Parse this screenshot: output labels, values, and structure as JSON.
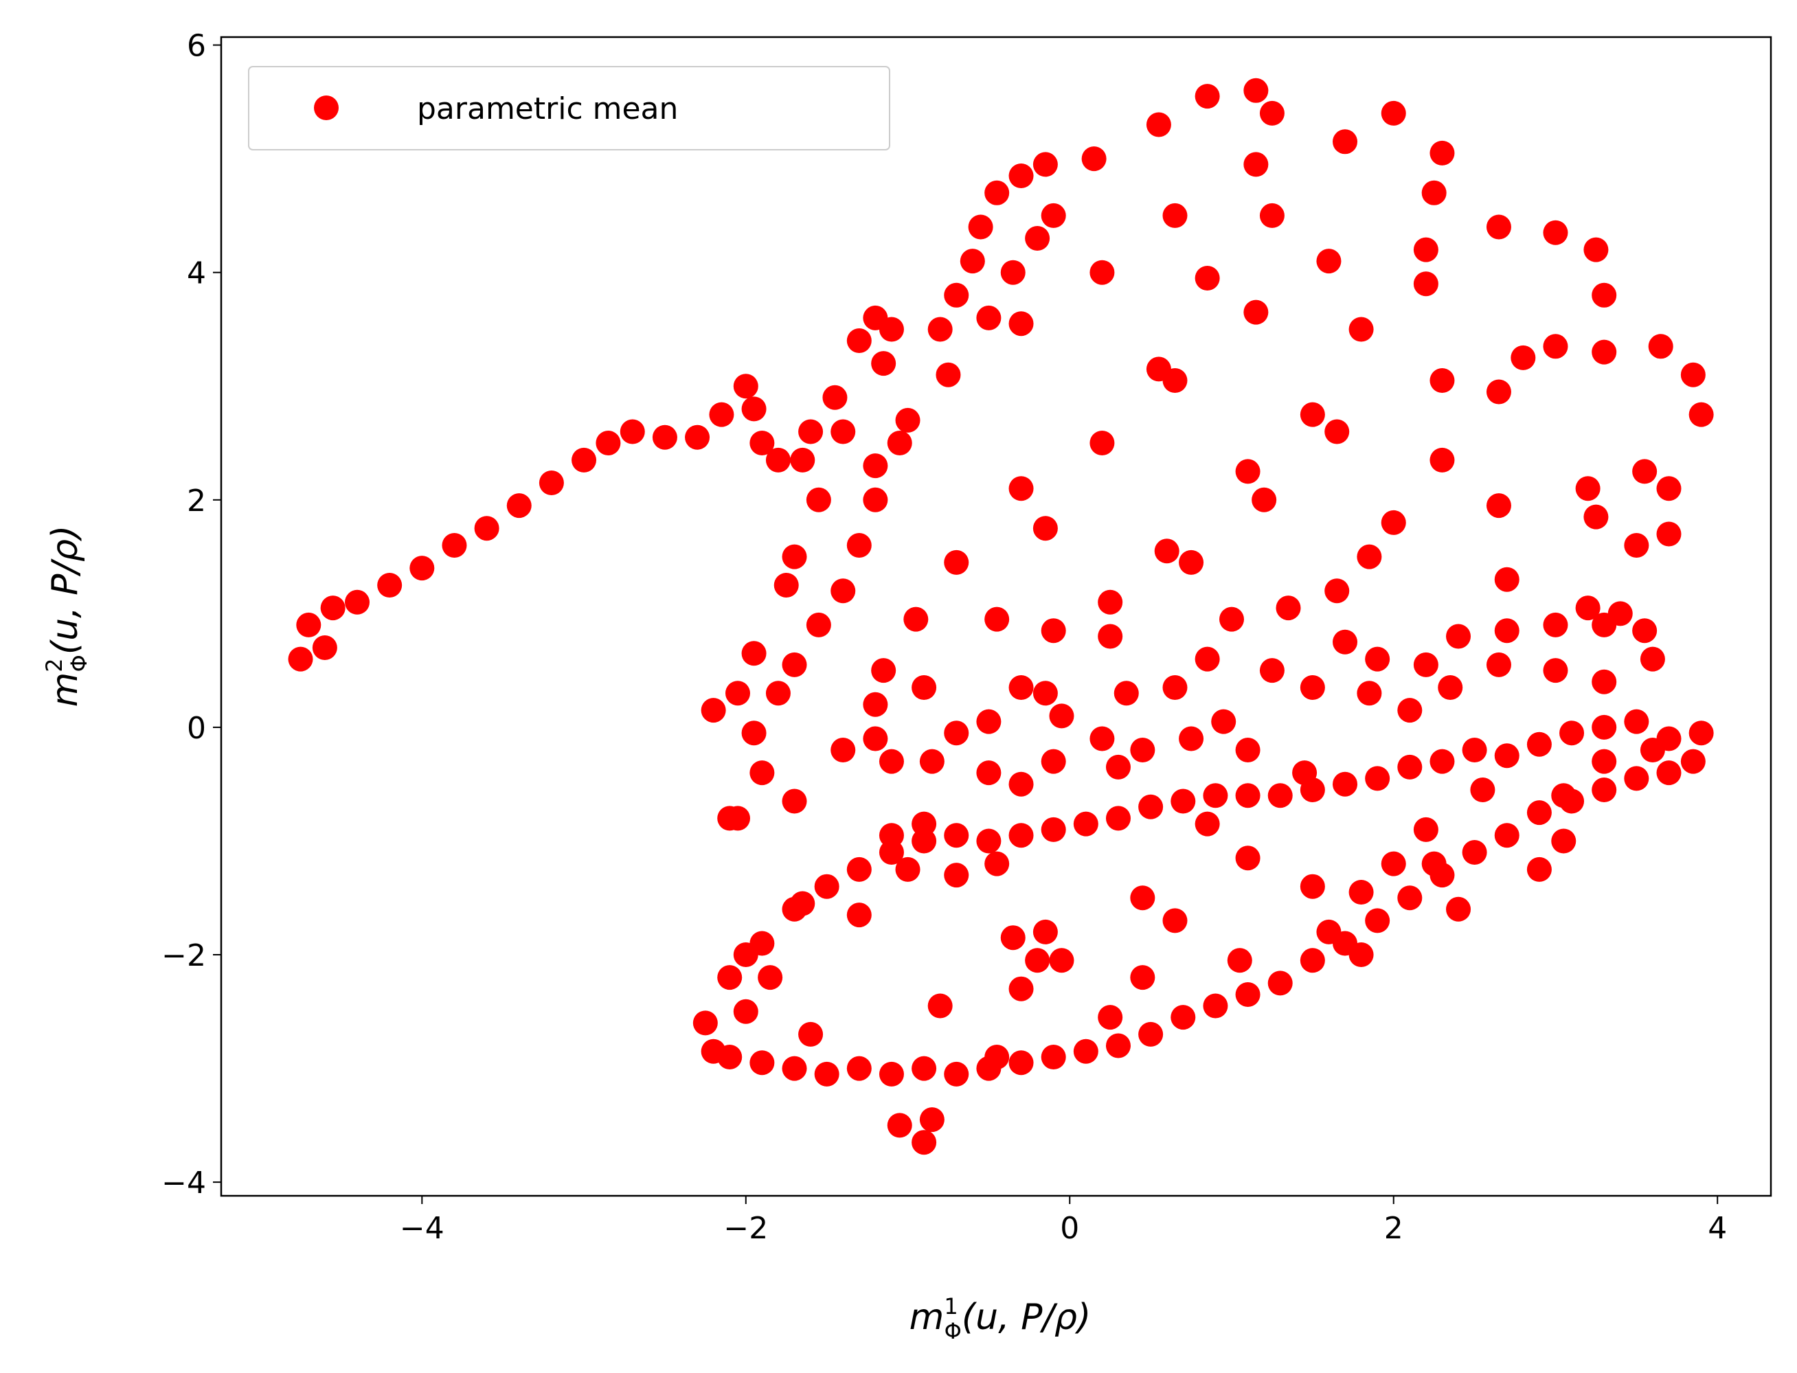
{
  "chart_data": {
    "type": "scatter",
    "xlabel": {
      "symbol": "m",
      "superscript": "1",
      "subscript": "Φ",
      "argument": "(u, P/ρ)"
    },
    "ylabel": {
      "symbol": "m",
      "superscript": "2",
      "subscript": "Φ",
      "argument": "(u, P/ρ)"
    },
    "xlim": [
      -5.24,
      4.33
    ],
    "ylim": [
      -4.12,
      6.07
    ],
    "xticks": [
      {
        "value": -4,
        "label": "−4"
      },
      {
        "value": -2,
        "label": "−2"
      },
      0,
      2,
      4
    ],
    "yticks": [
      {
        "value": -4,
        "label": "−4"
      },
      {
        "value": -2,
        "label": "−2"
      },
      0,
      2,
      4,
      6
    ],
    "grid": false,
    "legend": "upper left",
    "series": [
      {
        "name": "parametric mean",
        "color": "#ff0000",
        "x": [
          -4.75,
          -4.7,
          -4.6,
          -4.55,
          -4.4,
          -4.2,
          -4.0,
          -3.8,
          -3.6,
          -3.4,
          -3.2,
          -3.0,
          -2.85,
          -2.7,
          -2.5,
          -2.3,
          -2.15,
          -2.0,
          -1.95,
          -1.9,
          -1.8,
          -1.65,
          -1.6,
          -1.55,
          -1.7,
          -1.75,
          -1.55,
          -1.4,
          -1.3,
          -1.2,
          -1.2,
          -1.05,
          -1.45,
          -1.3,
          -1.2,
          -1.1,
          -1.15,
          -1.4,
          -1.0,
          -0.8,
          -0.75,
          -0.7,
          -0.6,
          -0.55,
          -0.5,
          -0.45,
          -0.35,
          -0.3,
          -0.3,
          -0.2,
          -0.15,
          -0.1,
          0.15,
          0.2,
          0.55,
          0.65,
          0.85,
          0.85,
          1.15,
          1.15,
          1.25,
          1.25,
          1.15,
          1.7,
          1.6,
          2.0,
          2.3,
          2.2,
          2.2,
          2.25,
          2.65,
          3.0,
          3.25,
          3.3,
          1.8,
          2.3,
          2.65,
          2.8,
          3.0,
          3.3,
          3.65,
          3.85,
          3.9,
          0.55,
          0.65,
          0.2,
          1.1,
          1.2,
          1.5,
          1.65,
          2.3,
          2.65,
          3.2,
          3.25,
          3.55,
          3.7,
          3.7,
          3.5,
          2.0,
          1.85,
          2.7,
          -0.3,
          -0.15,
          0.6,
          0.75,
          -0.7,
          1.0,
          0.25,
          1.35,
          1.65,
          -0.95,
          -0.45,
          -0.1,
          0.25,
          0.85,
          1.7,
          1.9,
          2.2,
          2.4,
          2.7,
          3.0,
          3.2,
          3.3,
          3.4,
          3.55,
          3.6,
          3.3,
          3.0,
          2.65,
          2.35,
          2.1,
          1.85,
          1.5,
          1.25,
          0.65,
          0.35,
          0.95,
          1.1,
          0.75,
          0.45,
          0.2,
          -0.05,
          -0.15,
          -0.3,
          -0.5,
          -0.7,
          -0.5,
          -0.3,
          -0.1,
          0.3,
          -1.15,
          -0.9,
          -1.2,
          -1.2,
          -1.1,
          -0.85,
          -1.4,
          -1.7,
          -1.8,
          -1.95,
          -2.05,
          -2.2,
          -1.95,
          -1.9,
          -2.1,
          -2.05,
          -1.7,
          -1.1,
          -0.9,
          -2.1,
          -1.9,
          -1.7,
          -1.5,
          -1.3,
          -1.1,
          -0.9,
          -0.7,
          -0.5,
          -0.3,
          -0.1,
          0.1,
          0.3,
          0.5,
          0.7,
          0.9,
          1.1,
          1.3,
          1.5,
          1.7,
          1.9,
          2.1,
          2.3,
          2.5,
          2.7,
          2.9,
          3.1,
          3.3,
          3.5,
          3.7,
          3.85,
          3.9,
          3.7,
          3.5,
          3.3,
          3.1,
          2.9,
          2.7,
          2.5,
          2.3,
          2.1,
          1.9,
          1.7,
          1.5,
          1.3,
          1.1,
          0.9,
          0.7,
          0.5,
          0.3,
          0.1,
          -0.1,
          -0.3,
          -0.5,
          -0.7,
          -0.9,
          -1.1,
          -1.3,
          -1.5,
          -1.7,
          -1.9,
          -2.1,
          -2.25,
          -2.2,
          -2.0,
          -1.85,
          -2.0,
          -0.85,
          -1.05,
          -0.9,
          -0.8,
          -0.35,
          -0.15,
          -0.05,
          -0.3,
          -0.2,
          0.45,
          0.45,
          1.1,
          1.05,
          1.5,
          1.8,
          2.2,
          2.25,
          2.0,
          1.6,
          2.55,
          3.05,
          3.05,
          2.9,
          3.3,
          3.6,
          -1.6,
          -0.45,
          0.25,
          0.65,
          1.45,
          0.85,
          -0.45,
          -0.7,
          -1.0,
          -1.3,
          -1.65,
          1.8,
          2.4
        ],
        "values": [
          0.6,
          0.9,
          0.7,
          1.05,
          1.1,
          1.25,
          1.4,
          1.6,
          1.75,
          1.95,
          2.15,
          2.35,
          2.5,
          2.6,
          2.55,
          2.55,
          2.75,
          3.0,
          2.8,
          2.5,
          2.35,
          2.35,
          2.6,
          2.0,
          1.5,
          1.25,
          0.9,
          1.2,
          1.6,
          2.0,
          2.3,
          2.5,
          2.9,
          3.4,
          3.6,
          3.5,
          3.2,
          2.6,
          2.7,
          3.5,
          3.1,
          3.8,
          4.1,
          4.4,
          3.6,
          4.7,
          4.0,
          4.85,
          3.55,
          4.3,
          4.95,
          4.5,
          5.0,
          4.0,
          5.3,
          4.5,
          5.55,
          3.95,
          5.6,
          4.95,
          5.4,
          4.5,
          3.65,
          5.15,
          4.1,
          5.4,
          5.05,
          4.2,
          3.9,
          4.7,
          4.4,
          4.35,
          4.2,
          3.8,
          3.5,
          3.05,
          2.95,
          3.25,
          3.35,
          3.3,
          3.35,
          3.1,
          2.75,
          3.15,
          3.05,
          2.5,
          2.25,
          2.0,
          2.75,
          2.6,
          2.35,
          1.95,
          2.1,
          1.85,
          2.25,
          2.1,
          1.7,
          1.6,
          1.8,
          1.5,
          1.3,
          2.1,
          1.75,
          1.55,
          1.45,
          1.45,
          0.95,
          1.1,
          1.05,
          1.2,
          0.95,
          0.95,
          0.85,
          0.8,
          0.6,
          0.75,
          0.6,
          0.55,
          0.8,
          0.85,
          0.9,
          1.05,
          0.9,
          1.0,
          0.85,
          0.6,
          0.4,
          0.5,
          0.55,
          0.35,
          0.15,
          0.3,
          0.35,
          0.5,
          0.35,
          0.3,
          0.05,
          -0.2,
          -0.1,
          -0.2,
          -0.1,
          0.1,
          0.3,
          0.35,
          0.05,
          -0.05,
          -0.4,
          -0.5,
          -0.3,
          -0.35,
          0.5,
          0.35,
          0.2,
          -0.1,
          -0.3,
          -0.3,
          -0.2,
          0.55,
          0.3,
          0.65,
          0.3,
          0.15,
          -0.05,
          -0.4,
          -0.8,
          -0.8,
          -0.65,
          -0.95,
          -0.85,
          -2.2,
          -1.9,
          -1.6,
          -1.4,
          -1.25,
          -1.1,
          -1.0,
          -0.95,
          -1.0,
          -0.95,
          -0.9,
          -0.85,
          -0.8,
          -0.7,
          -0.65,
          -0.6,
          -0.6,
          -0.6,
          -0.55,
          -0.5,
          -0.45,
          -0.35,
          -0.3,
          -0.2,
          -0.25,
          -0.15,
          -0.05,
          0.0,
          0.05,
          -0.1,
          -0.3,
          -0.05,
          -0.4,
          -0.45,
          -0.55,
          -0.65,
          -0.75,
          -0.95,
          -1.1,
          -1.3,
          -1.5,
          -1.7,
          -1.9,
          -2.05,
          -2.25,
          -2.35,
          -2.45,
          -2.55,
          -2.7,
          -2.8,
          -2.85,
          -2.9,
          -2.95,
          -3.0,
          -3.05,
          -3.0,
          -3.05,
          -3.0,
          -3.05,
          -3.0,
          -2.95,
          -2.9,
          -2.6,
          -2.85,
          -2.5,
          -2.2,
          -2.0,
          -3.45,
          -3.5,
          -3.65,
          -2.45,
          -1.85,
          -1.8,
          -2.05,
          -2.3,
          -2.05,
          -1.5,
          -2.2,
          -1.15,
          -2.05,
          -1.4,
          -1.45,
          -0.9,
          -1.2,
          -1.2,
          -1.8,
          -0.55,
          -0.6,
          -1.0,
          -1.25,
          -0.3,
          -0.2,
          -2.7,
          -2.9,
          -2.55,
          -1.7,
          -0.4,
          -0.85,
          -1.2,
          -1.3,
          -1.25,
          -1.65,
          -1.55,
          -2.0,
          -1.6
        ]
      }
    ]
  }
}
